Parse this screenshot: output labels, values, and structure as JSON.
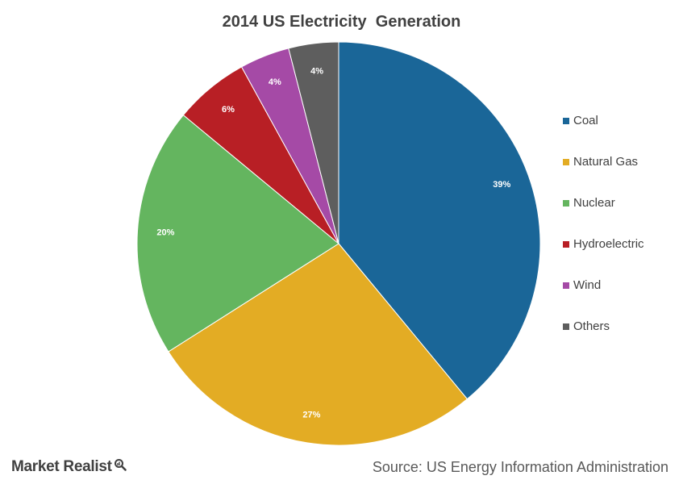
{
  "brand": {
    "name": "Market Realist",
    "icon": "magnifier-icon"
  },
  "source": "Source: US Energy Information Administration",
  "chart_data": {
    "type": "pie",
    "title": "2014 US Electricity  Generation",
    "start_angle_deg": 0,
    "direction": "clockwise",
    "legend_position": "right",
    "slices": [
      {
        "label": "Coal",
        "value": 39,
        "display": "39%",
        "color": "#1A6698"
      },
      {
        "label": "Natural Gas",
        "value": 27,
        "display": "27%",
        "color": "#E3AC24"
      },
      {
        "label": "Nuclear",
        "value": 20,
        "display": "20%",
        "color": "#64B55F"
      },
      {
        "label": "Hydroelectric",
        "value": 6,
        "display": "6%",
        "color": "#B81F25"
      },
      {
        "label": "Wind",
        "value": 4,
        "display": "4%",
        "color": "#A54AA6"
      },
      {
        "label": "Others",
        "value": 4,
        "display": "4%",
        "color": "#5E5E5E"
      }
    ]
  }
}
